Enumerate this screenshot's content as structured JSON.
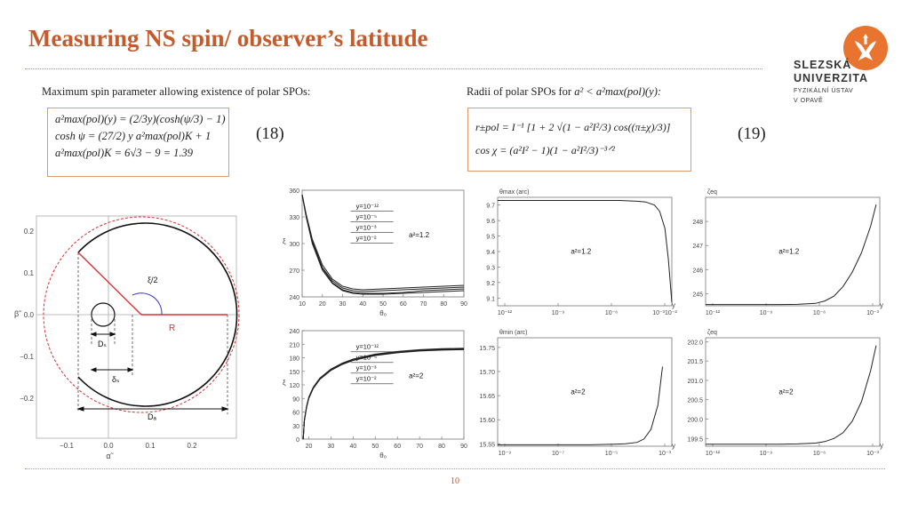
{
  "title": "Measuring NS spin/ observer’s latitude",
  "logo": {
    "line1": "SLEZSKÁ",
    "line2": "UNIVERZITA",
    "line3": "FYZIKÁLNÍ ÚSTAV",
    "line4": "V OPAVĚ",
    "color": "#e8742f"
  },
  "caption_left": "Maximum spin parameter allowing existence of polar SPOs:",
  "caption_right_prefix": "Radii of polar SPOs for ",
  "caption_right_math": "a² < a²max(pol)(y):",
  "formula_left": [
    "a²max(pol)(y) = (2/3y)(cosh(ψ/3) − 1)",
    "cosh ψ = (27/2) y a²max(pol)K + 1",
    "a²max(pol)K = 6√3 − 9 = 1.39"
  ],
  "formula_right": [
    "r±pol = I⁻¹ [1 + 2 √(1 − a²I²/3) cos((π±χ)/3)]",
    "cos χ = (a²I² − 1)(1 − a²I²/3)⁻³ᐟ²"
  ],
  "eq_left": "(18)",
  "eq_right": "(19)",
  "page_number": "10",
  "diagram": {
    "x_ticks": [
      "−0.1",
      "0.0",
      "0.1",
      "0.2"
    ],
    "y_ticks": [
      "0.2",
      "0.1",
      "0.0",
      "−0.1",
      "−0.2"
    ],
    "xlabel": "α̃",
    "ylabel": "β̃",
    "label_angle": "ξ/2",
    "label_R": "R",
    "label_Ds": "Dₛ",
    "label_ds": "δₛ",
    "label_Da": "Dₐ"
  },
  "chart_data": [
    {
      "type": "line",
      "panel": "xi-vs-theta-a1.2",
      "xlabel": "θₒ",
      "ylabel": "ξ",
      "xlim": [
        10,
        90
      ],
      "ylim": [
        240,
        360
      ],
      "x_ticks": [
        "10",
        "20",
        "30",
        "40",
        "50",
        "60",
        "70",
        "80",
        "90"
      ],
      "y_ticks": [
        "360",
        "330",
        "300",
        "270",
        "240"
      ],
      "legend": [
        "y=10⁻¹²",
        "y=10⁻⁵",
        "y=10⁻³",
        "y=10⁻²"
      ],
      "annotation": "a²=1.2",
      "x": [
        10,
        12,
        15,
        20,
        25,
        30,
        35,
        40,
        50,
        60,
        70,
        80,
        90
      ],
      "series": [
        {
          "values": [
            355,
            330,
            300,
            270,
            255,
            247,
            244,
            243,
            243,
            244,
            245,
            246,
            247
          ]
        },
        {
          "values": [
            355,
            331,
            302,
            272,
            256,
            248,
            245,
            244,
            244,
            245,
            247,
            248,
            249
          ]
        },
        {
          "values": [
            355,
            332,
            303,
            273,
            258,
            250,
            247,
            246,
            247,
            248,
            249,
            250,
            251
          ]
        },
        {
          "values": [
            355,
            333,
            305,
            276,
            260,
            252,
            249,
            248,
            249,
            250,
            251,
            252,
            253
          ]
        }
      ]
    },
    {
      "type": "line",
      "panel": "theta-max-vs-y",
      "title": "θmax (arc)",
      "xlabel": "y",
      "ylim": [
        9.05,
        9.75
      ],
      "x_ticks": [
        "10⁻¹²",
        "10⁻⁹",
        "10⁻⁶",
        "10⁻³10⁻²"
      ],
      "y_ticks": [
        "9.7",
        "9.6",
        "9.5",
        "9.4",
        "9.3",
        "9.2",
        "9.1"
      ],
      "annotation": "a²=1.2",
      "x_log10": [
        -12,
        -10,
        -8,
        -6,
        -5,
        -4,
        -3.5,
        -3,
        -2.7,
        -2.4,
        -2.2,
        -2
      ],
      "values": [
        9.73,
        9.73,
        9.73,
        9.73,
        9.73,
        9.725,
        9.72,
        9.7,
        9.66,
        9.55,
        9.35,
        9.07
      ]
    },
    {
      "type": "line",
      "panel": "zeta-eq-vs-y-a1.2",
      "title": "ζeq",
      "xlabel": "y",
      "ylim": [
        244.5,
        249
      ],
      "x_ticks": [
        "10⁻¹²",
        "10⁻⁹",
        "10⁻⁶",
        "10⁻³"
      ],
      "y_ticks": [
        "248",
        "247",
        "246",
        "245"
      ],
      "annotation": "a²=1.2",
      "x_log10": [
        -12,
        -10,
        -8,
        -7,
        -6,
        -5.5,
        -5,
        -4.5,
        -4,
        -3.5,
        -3,
        -2.7
      ],
      "values": [
        244.55,
        244.55,
        244.55,
        244.56,
        244.6,
        244.7,
        244.9,
        245.3,
        245.9,
        246.7,
        247.8,
        248.7
      ]
    },
    {
      "type": "line",
      "panel": "xi-vs-theta-a2",
      "xlabel": "θₒ",
      "ylabel": "ξ",
      "xlim": [
        17,
        90
      ],
      "ylim": [
        0,
        240
      ],
      "x_ticks": [
        "20",
        "30",
        "40",
        "50",
        "60",
        "70",
        "80",
        "90"
      ],
      "y_ticks": [
        "240",
        "210",
        "180",
        "150",
        "120",
        "90",
        "60",
        "30",
        "0"
      ],
      "legend": [
        "y=10⁻¹²",
        "y=10⁻⁵",
        "y=10⁻³",
        "y=10⁻²"
      ],
      "annotation": "a²=2",
      "x": [
        17.5,
        18,
        19,
        20,
        22,
        25,
        30,
        35,
        40,
        50,
        60,
        70,
        80,
        90
      ],
      "series": [
        {
          "values": [
            0,
            40,
            70,
            90,
            112,
            132,
            152,
            165,
            174,
            185,
            191,
            195,
            197,
            198
          ]
        },
        {
          "values": [
            0,
            41,
            71,
            91,
            113,
            133,
            153,
            166,
            175,
            186,
            192,
            196,
            198,
            199
          ]
        },
        {
          "values": [
            0,
            42,
            72,
            92,
            114,
            134,
            154,
            167,
            176,
            187,
            193,
            197,
            199,
            200
          ]
        },
        {
          "values": [
            0,
            43,
            73,
            93,
            115,
            135,
            155,
            168,
            177,
            188,
            194,
            198,
            200,
            201
          ]
        }
      ]
    },
    {
      "type": "line",
      "panel": "theta-min-vs-y",
      "title": "θmin (arc)",
      "xlabel": "y",
      "ylim": [
        15.545,
        15.77
      ],
      "x_ticks": [
        "10⁻⁹",
        "10⁻⁷",
        "10⁻⁵",
        "10⁻³"
      ],
      "y_ticks": [
        "15.75",
        "15.70",
        "15.65",
        "15.60",
        "15.55"
      ],
      "annotation": "a²=2",
      "x_log10": [
        -10,
        -8,
        -6,
        -5,
        -4.5,
        -4,
        -3.7,
        -3.4,
        -3.1,
        -2.9
      ],
      "values": [
        15.548,
        15.548,
        15.548,
        15.549,
        15.55,
        15.553,
        15.56,
        15.58,
        15.63,
        15.71
      ]
    },
    {
      "type": "line",
      "panel": "zeta-eq-vs-y-a2",
      "title": "ζeq",
      "xlabel": "y",
      "ylim": [
        199.3,
        202.1
      ],
      "x_ticks": [
        "10⁻¹²",
        "10⁻⁹",
        "10⁻⁶",
        "10⁻³"
      ],
      "y_ticks": [
        "202.0",
        "201.5",
        "201.0",
        "200.5",
        "200.0",
        "199.5"
      ],
      "annotation": "a²=2",
      "x_log10": [
        -12,
        -10,
        -8,
        -7,
        -6,
        -5.5,
        -5,
        -4.5,
        -4,
        -3.5,
        -3,
        -2.7
      ],
      "values": [
        199.35,
        199.35,
        199.35,
        199.36,
        199.38,
        199.42,
        199.5,
        199.65,
        199.95,
        200.45,
        201.25,
        201.9
      ]
    }
  ]
}
